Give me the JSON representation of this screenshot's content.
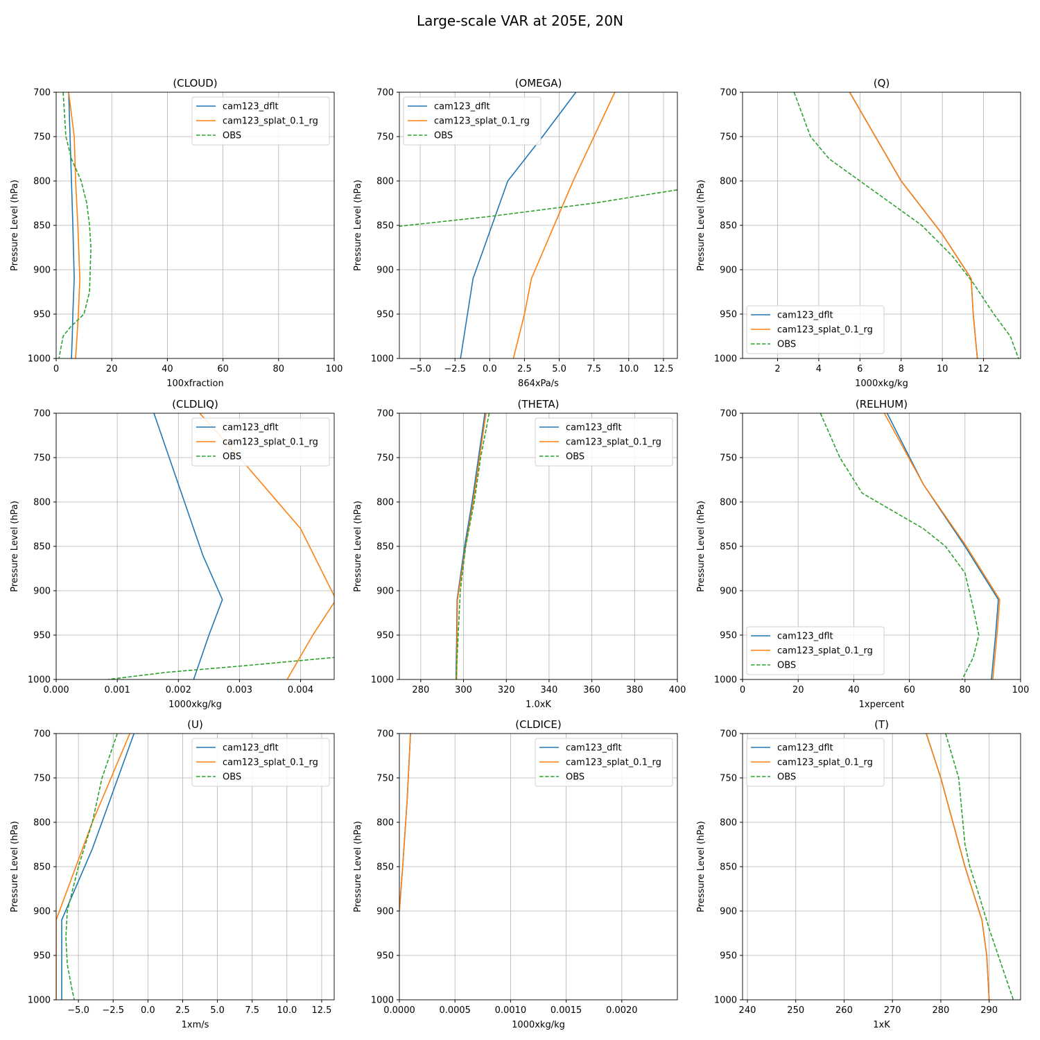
{
  "figure": {
    "title": "Large-scale VAR at 205E, 20N"
  },
  "series_names": [
    "cam123_dflt",
    "cam123_splat_0.1_rg",
    "OBS"
  ],
  "series_colors": [
    "#1f77b4",
    "#ff7f0e",
    "#2ca02c"
  ],
  "chart_data": [
    {
      "type": "line",
      "title": "(CLOUD)",
      "xlabel": "100xfraction",
      "ylabel": "Pressure Level (hPa)",
      "xlim": [
        0,
        100
      ],
      "ylim": [
        1000,
        700
      ],
      "xticks": [
        0,
        20,
        40,
        60,
        80,
        100
      ],
      "xtick_labels": [
        "0",
        "20",
        "40",
        "60",
        "80",
        "100"
      ],
      "yticks": [
        700,
        750,
        800,
        850,
        900,
        950,
        1000
      ],
      "legend": "upper right",
      "series": [
        {
          "name": "cam123_dflt",
          "x": [
            4.5,
            5.0,
            5.5,
            6.0,
            6.5,
            6.0,
            5.8,
            5.5
          ],
          "y": [
            700,
            750,
            800,
            850,
            910,
            950,
            975,
            1000
          ]
        },
        {
          "name": "cam123_splat_0.1_rg",
          "x": [
            4.5,
            6.5,
            7.0,
            7.8,
            8.5,
            8.0,
            7.5,
            7.0
          ],
          "y": [
            700,
            750,
            800,
            850,
            910,
            950,
            975,
            1000
          ]
        },
        {
          "name": "OBS",
          "x": [
            2.5,
            3.5,
            5.5,
            9.0,
            11.0,
            12.0,
            12.5,
            12.0,
            10.0,
            5.0,
            2.5,
            1.0
          ],
          "y": [
            700,
            750,
            775,
            800,
            825,
            850,
            875,
            925,
            950,
            965,
            975,
            1000
          ]
        }
      ]
    },
    {
      "type": "line",
      "title": "(OMEGA)",
      "xlabel": "864xPa/s",
      "ylabel": "Pressure Level (hPa)",
      "xlim": [
        -6.5,
        13.5
      ],
      "ylim": [
        1000,
        700
      ],
      "xticks": [
        -5.0,
        -2.5,
        0.0,
        2.5,
        5.0,
        7.5,
        10.0,
        12.5
      ],
      "xtick_labels": [
        "−5.0",
        "−2.5",
        "0.0",
        "2.5",
        "5.0",
        "7.5",
        "10.0",
        "12.5"
      ],
      "yticks": [
        700,
        750,
        800,
        850,
        900,
        950,
        1000
      ],
      "legend": "upper left",
      "series": [
        {
          "name": "cam123_dflt",
          "x": [
            6.2,
            3.8,
            1.3,
            -1.2,
            -1.6,
            -2.1
          ],
          "y": [
            700,
            750,
            800,
            910,
            950,
            1000
          ]
        },
        {
          "name": "cam123_splat_0.1_rg",
          "x": [
            9.0,
            7.5,
            6.0,
            3.0,
            2.5,
            1.7
          ],
          "y": [
            700,
            750,
            800,
            910,
            950,
            1000
          ]
        },
        {
          "name": "OBS",
          "x": [
            13.5,
            7.5,
            0.0,
            -6.5
          ],
          "y": [
            810,
            825,
            840,
            851
          ]
        }
      ]
    },
    {
      "type": "line",
      "title": "(Q)",
      "xlabel": "1000xkg/kg",
      "ylabel": "Pressure Level (hPa)",
      "xlim": [
        0.3,
        13.8
      ],
      "ylim": [
        1000,
        700
      ],
      "xticks": [
        2,
        4,
        6,
        8,
        10,
        12
      ],
      "xtick_labels": [
        "2",
        "4",
        "6",
        "8",
        "10",
        "12"
      ],
      "yticks": [
        700,
        750,
        800,
        850,
        900,
        950,
        1000
      ],
      "legend": "lower left",
      "series": [
        {
          "name": "cam123_dflt",
          "x": [
            5.5,
            8.0,
            10.0,
            11.4,
            11.5,
            11.7
          ],
          "y": [
            700,
            800,
            860,
            910,
            950,
            1000
          ]
        },
        {
          "name": "cam123_splat_0.1_rg",
          "x": [
            5.5,
            8.0,
            10.0,
            11.4,
            11.5,
            11.7
          ],
          "y": [
            700,
            800,
            860,
            910,
            950,
            1000
          ]
        },
        {
          "name": "OBS",
          "x": [
            2.8,
            3.6,
            4.5,
            6.0,
            7.5,
            9.0,
            10.5,
            11.5,
            12.5,
            13.3,
            13.7
          ],
          "y": [
            700,
            750,
            775,
            800,
            825,
            850,
            885,
            915,
            950,
            975,
            1000
          ]
        }
      ]
    },
    {
      "type": "line",
      "title": "(CLDLIQ)",
      "xlabel": "1000xkg/kg",
      "ylabel": "Pressure Level (hPa)",
      "xlim": [
        0,
        0.00455
      ],
      "ylim": [
        1000,
        700
      ],
      "xticks": [
        0,
        0.001,
        0.002,
        0.003,
        0.004
      ],
      "xtick_labels": [
        "0.000",
        "0.001",
        "0.002",
        "0.003",
        "0.004"
      ],
      "yticks": [
        700,
        750,
        800,
        850,
        900,
        950,
        1000
      ],
      "legend": "upper right",
      "series": [
        {
          "name": "cam123_dflt",
          "x": [
            0.0016,
            0.002,
            0.0024,
            0.00272,
            0.0025,
            0.00225
          ],
          "y": [
            700,
            780,
            860,
            910,
            950,
            1000
          ]
        },
        {
          "name": "cam123_splat_0.1_rg",
          "x": [
            0.00235,
            0.003,
            0.004,
            0.00458,
            0.0042,
            0.00378
          ],
          "y": [
            700,
            750,
            830,
            910,
            950,
            1000
          ]
        },
        {
          "name": "OBS",
          "x": [
            0.00458,
            0.003,
            0.0018,
            0.00085
          ],
          "y": [
            975,
            985,
            992,
            1000
          ]
        }
      ]
    },
    {
      "type": "line",
      "title": "(THETA)",
      "xlabel": "1.0xK",
      "ylabel": "Pressure Level (hPa)",
      "xlim": [
        270,
        400
      ],
      "ylim": [
        1000,
        700
      ],
      "xticks": [
        280,
        300,
        320,
        340,
        360,
        380,
        400
      ],
      "xtick_labels": [
        "280",
        "300",
        "320",
        "340",
        "360",
        "380",
        "400"
      ],
      "yticks": [
        700,
        750,
        800,
        850,
        900,
        950,
        1000
      ],
      "legend": "upper right",
      "series": [
        {
          "name": "cam123_dflt",
          "x": [
            310,
            304,
            300.5,
            297,
            296.8,
            296.5
          ],
          "y": [
            700,
            800,
            850,
            910,
            950,
            1000
          ]
        },
        {
          "name": "cam123_splat_0.1_rg",
          "x": [
            310.5,
            304.5,
            301,
            297.2,
            297,
            296.8
          ],
          "y": [
            700,
            800,
            850,
            910,
            950,
            1000
          ]
        },
        {
          "name": "OBS",
          "x": [
            312,
            308,
            305,
            301,
            298.5,
            297.5,
            296.5
          ],
          "y": [
            700,
            750,
            800,
            850,
            900,
            950,
            1000
          ]
        }
      ]
    },
    {
      "type": "line",
      "title": "(RELHUM)",
      "xlabel": "1xpercent",
      "ylabel": "Pressure Level (hPa)",
      "xlim": [
        0,
        100
      ],
      "ylim": [
        1000,
        700
      ],
      "xticks": [
        0,
        20,
        40,
        60,
        80,
        100
      ],
      "xtick_labels": [
        "0",
        "20",
        "40",
        "60",
        "80",
        "100"
      ],
      "yticks": [
        700,
        750,
        800,
        850,
        900,
        950,
        1000
      ],
      "legend": "lower left",
      "series": [
        {
          "name": "cam123_dflt",
          "x": [
            52,
            65,
            80,
            92,
            91,
            89.5
          ],
          "y": [
            700,
            780,
            850,
            910,
            950,
            1000
          ]
        },
        {
          "name": "cam123_splat_0.1_rg",
          "x": [
            51,
            65,
            80.5,
            92.5,
            91.5,
            90
          ],
          "y": [
            700,
            780,
            850,
            910,
            950,
            1000
          ]
        },
        {
          "name": "OBS",
          "x": [
            28,
            35,
            40,
            43,
            54,
            65,
            73,
            80,
            83,
            85,
            83,
            79
          ],
          "y": [
            700,
            750,
            775,
            790,
            810,
            830,
            850,
            880,
            920,
            950,
            975,
            1000
          ]
        }
      ]
    },
    {
      "type": "line",
      "title": "(U)",
      "xlabel": "1xm/s",
      "ylabel": "Pressure Level (hPa)",
      "xlim": [
        -6.6,
        13.4
      ],
      "ylim": [
        1000,
        700
      ],
      "xticks": [
        -5.0,
        -2.5,
        0.0,
        2.5,
        5.0,
        7.5,
        10.0,
        12.5
      ],
      "xtick_labels": [
        "−5.0",
        "−2.5",
        "0.0",
        "2.5",
        "5.0",
        "7.5",
        "10.0",
        "12.5"
      ],
      "yticks": [
        700,
        750,
        800,
        850,
        900,
        950,
        1000
      ],
      "legend": "upper right",
      "series": [
        {
          "name": "cam123_dflt",
          "x": [
            -1.0,
            -4.0,
            -6.2,
            -6.2,
            -6.2
          ],
          "y": [
            700,
            830,
            910,
            950,
            1000
          ]
        },
        {
          "name": "cam123_splat_0.1_rg",
          "x": [
            -1.3,
            -4.0,
            -6.6,
            -6.6,
            -6.6
          ],
          "y": [
            700,
            800,
            910,
            950,
            1000
          ]
        },
        {
          "name": "OBS",
          "x": [
            -2.2,
            -3.3,
            -4.0,
            -5.0,
            -5.8,
            -5.9,
            -5.8,
            -5.5,
            -5.3
          ],
          "y": [
            700,
            750,
            800,
            850,
            900,
            930,
            960,
            985,
            1000
          ]
        }
      ]
    },
    {
      "type": "line",
      "title": "(CLDICE)",
      "xlabel": "1000xkg/kg",
      "ylabel": "Pressure Level (hPa)",
      "xlim": [
        0,
        0.0025
      ],
      "ylim": [
        1000,
        700
      ],
      "xticks": [
        0,
        0.0005,
        0.001,
        0.0015,
        0.002
      ],
      "xtick_labels": [
        "0.0000",
        "0.0005",
        "0.0010",
        "0.0015",
        "0.0020"
      ],
      "yticks": [
        700,
        750,
        800,
        850,
        900,
        950,
        1000
      ],
      "legend": "upper right",
      "series": [
        {
          "name": "cam123_dflt",
          "x": [
            0.0001,
            7e-05,
            3e-05,
            0.0
          ],
          "y": [
            700,
            775,
            850,
            900
          ]
        },
        {
          "name": "cam123_splat_0.1_rg",
          "x": [
            0.0001,
            7e-05,
            3e-05,
            0.0
          ],
          "y": [
            700,
            775,
            850,
            900
          ]
        },
        {
          "name": "OBS",
          "x": [],
          "y": []
        }
      ]
    },
    {
      "type": "line",
      "title": "(T)",
      "xlabel": "1xK",
      "ylabel": "Pressure Level (hPa)",
      "xlim": [
        239,
        296.5
      ],
      "ylim": [
        1000,
        700
      ],
      "xticks": [
        240,
        250,
        260,
        270,
        280,
        290
      ],
      "xtick_labels": [
        "240",
        "250",
        "260",
        "270",
        "280",
        "290"
      ],
      "yticks": [
        700,
        750,
        800,
        850,
        900,
        950,
        1000
      ],
      "legend": "upper left",
      "series": [
        {
          "name": "cam123_dflt",
          "x": [
            277,
            280,
            285,
            288.5,
            289.5,
            290
          ],
          "y": [
            700,
            750,
            850,
            910,
            950,
            1000
          ]
        },
        {
          "name": "cam123_splat_0.1_rg",
          "x": [
            277,
            280,
            285,
            288.5,
            289.5,
            290
          ],
          "y": [
            700,
            750,
            850,
            910,
            950,
            1000
          ]
        },
        {
          "name": "OBS",
          "x": [
            281,
            283.7,
            285,
            286,
            287.5,
            290,
            292.5,
            295
          ],
          "y": [
            700,
            750,
            825,
            850,
            875,
            920,
            960,
            1000
          ]
        }
      ]
    }
  ]
}
